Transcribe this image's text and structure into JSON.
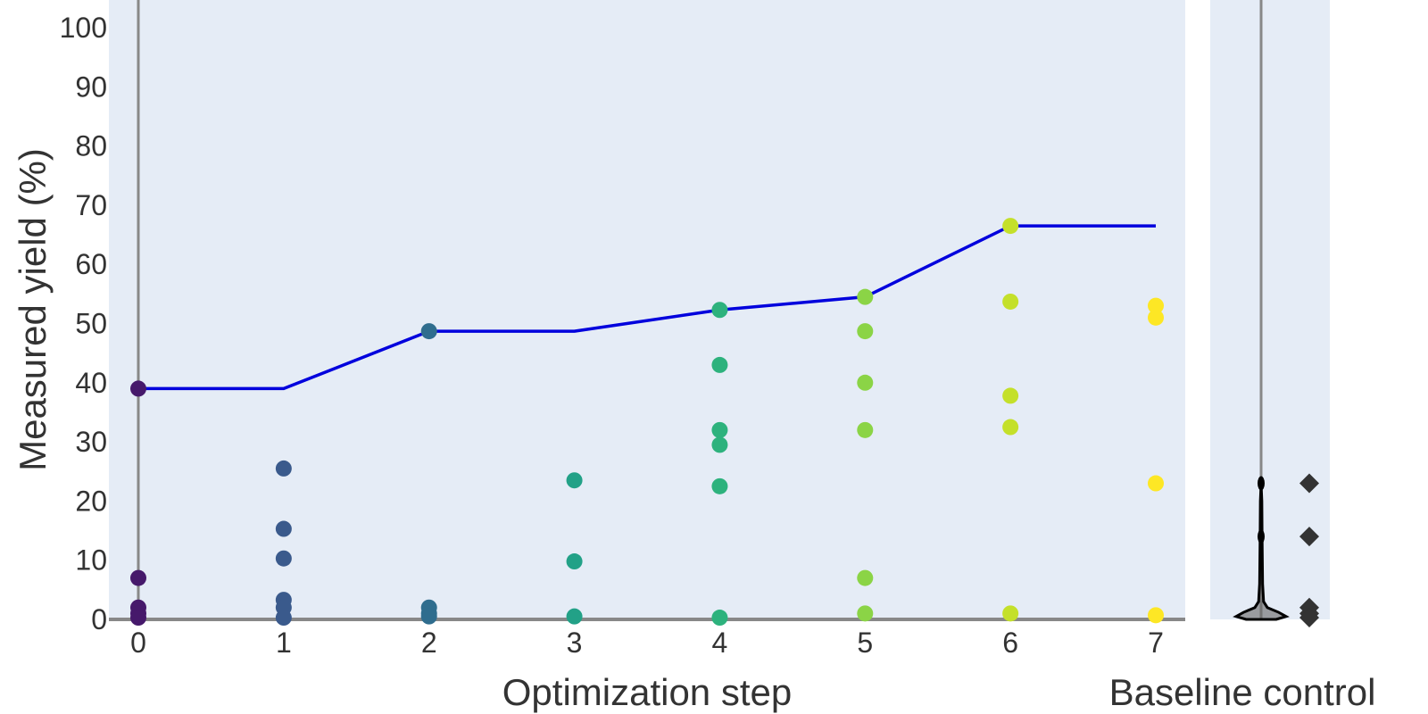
{
  "chart_data": {
    "type": "scatter",
    "xlabel": "Optimization step",
    "ylabel": "Measured yield (%)",
    "baseline_label": "Baseline control",
    "xlim": [
      -0.2,
      7.2
    ],
    "ylim": [
      0,
      105
    ],
    "x_ticks": [
      "0",
      "1",
      "2",
      "3",
      "4",
      "5",
      "6",
      "7"
    ],
    "y_ticks": [
      "0",
      "10",
      "20",
      "30",
      "40",
      "50",
      "60",
      "70",
      "80",
      "90",
      "100"
    ],
    "grid": false,
    "series": [
      {
        "type": "scatter",
        "points": [
          {
            "x": 0,
            "y": 39,
            "color": "#46196b"
          },
          {
            "x": 0,
            "y": 7,
            "color": "#46196b"
          },
          {
            "x": 0,
            "y": 2,
            "color": "#46196b"
          },
          {
            "x": 0,
            "y": 1,
            "color": "#46196b"
          },
          {
            "x": 0,
            "y": 0.3,
            "color": "#46196b"
          },
          {
            "x": 1,
            "y": 25.5,
            "color": "#3a5a8c"
          },
          {
            "x": 1,
            "y": 15.3,
            "color": "#3a5a8c"
          },
          {
            "x": 1,
            "y": 10.3,
            "color": "#3a5a8c"
          },
          {
            "x": 1,
            "y": 3.3,
            "color": "#3a5a8c"
          },
          {
            "x": 1,
            "y": 2,
            "color": "#3a5a8c"
          },
          {
            "x": 1,
            "y": 0.3,
            "color": "#3a5a8c"
          },
          {
            "x": 2,
            "y": 48.7,
            "color": "#2f6d8e"
          },
          {
            "x": 2,
            "y": 2,
            "color": "#2f6d8e"
          },
          {
            "x": 2,
            "y": 1,
            "color": "#2f6d8e"
          },
          {
            "x": 2,
            "y": 0.5,
            "color": "#2f6d8e"
          },
          {
            "x": 3,
            "y": 23.5,
            "color": "#22a187"
          },
          {
            "x": 3,
            "y": 9.8,
            "color": "#22a187"
          },
          {
            "x": 3,
            "y": 0.5,
            "color": "#22a187"
          },
          {
            "x": 4,
            "y": 52.3,
            "color": "#2db27d"
          },
          {
            "x": 4,
            "y": 43,
            "color": "#2db27d"
          },
          {
            "x": 4,
            "y": 32,
            "color": "#2db27d"
          },
          {
            "x": 4,
            "y": 29.5,
            "color": "#2db27d"
          },
          {
            "x": 4,
            "y": 22.5,
            "color": "#2db27d"
          },
          {
            "x": 4,
            "y": 0.3,
            "color": "#2db27d"
          },
          {
            "x": 5,
            "y": 54.5,
            "color": "#8bd446"
          },
          {
            "x": 5,
            "y": 48.7,
            "color": "#8bd446"
          },
          {
            "x": 5,
            "y": 40,
            "color": "#8bd446"
          },
          {
            "x": 5,
            "y": 32,
            "color": "#8bd446"
          },
          {
            "x": 5,
            "y": 7,
            "color": "#8bd446"
          },
          {
            "x": 5,
            "y": 1,
            "color": "#8bd446"
          },
          {
            "x": 6,
            "y": 66.5,
            "color": "#c4e02a"
          },
          {
            "x": 6,
            "y": 53.7,
            "color": "#c4e02a"
          },
          {
            "x": 6,
            "y": 37.8,
            "color": "#c4e02a"
          },
          {
            "x": 6,
            "y": 32.5,
            "color": "#c4e02a"
          },
          {
            "x": 6,
            "y": 1,
            "color": "#c4e02a"
          },
          {
            "x": 7,
            "y": 53,
            "color": "#fde725"
          },
          {
            "x": 7,
            "y": 51,
            "color": "#fde725"
          },
          {
            "x": 7,
            "y": 23,
            "color": "#fde725"
          },
          {
            "x": 7,
            "y": 0.7,
            "color": "#fde725"
          }
        ]
      },
      {
        "type": "line",
        "color": "#0000dd",
        "x": [
          0,
          1,
          2,
          3,
          4,
          5,
          6,
          7
        ],
        "y": [
          39,
          39,
          48.7,
          48.7,
          52.3,
          54.5,
          66.5,
          66.5
        ]
      },
      {
        "type": "baseline_points",
        "marker": "diamond",
        "color": "#333333",
        "y": [
          23,
          14,
          2,
          1,
          0.3
        ]
      }
    ],
    "baseline_violin": {
      "color": "#000000",
      "median_line_color": "#888888",
      "profile": [
        {
          "y": 0,
          "w": 0.6
        },
        {
          "y": 0.5,
          "w": 1.0
        },
        {
          "y": 1.2,
          "w": 0.7
        },
        {
          "y": 2,
          "w": 0.25
        },
        {
          "y": 3,
          "w": 0.1
        },
        {
          "y": 6,
          "w": 0.06
        },
        {
          "y": 14,
          "w": 0.04
        },
        {
          "y": 20,
          "w": 0.03
        },
        {
          "y": 23,
          "w": 0.0
        }
      ],
      "markers_y": [
        23,
        14
      ]
    },
    "colors": {
      "plot_background": "#e5ecf6",
      "axis_line": "#888888",
      "text": "#333333"
    }
  }
}
